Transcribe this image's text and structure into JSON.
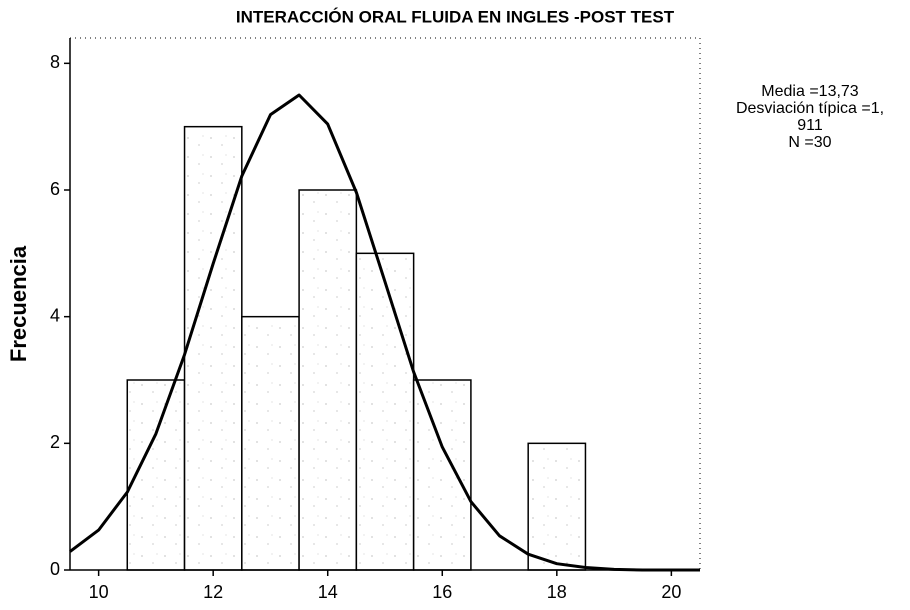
{
  "chart_data": {
    "type": "histogram",
    "title": "INTERACCIÓN ORAL FLUIDA EN INGLES -POST TEST",
    "y_label": "Frecuencia",
    "bins": [
      10.5,
      11.5,
      12.5,
      13.5,
      14.5,
      15.5,
      16.5,
      17.5,
      18.5
    ],
    "values": [
      3,
      7,
      4,
      6,
      5,
      3,
      0,
      2
    ],
    "color": "#ffffff",
    "xlim": [
      9.5,
      20.5
    ],
    "xticks": [
      10,
      12,
      14,
      16,
      18,
      20
    ],
    "ylim": [
      0,
      8.4
    ],
    "yticks": [
      0,
      2,
      4,
      6,
      8
    ],
    "curve": {
      "x": [
        9.5,
        10,
        10.5,
        11,
        11.5,
        12,
        12.5,
        13,
        13.5,
        14,
        14.5,
        15,
        15.5,
        16,
        16.5,
        17,
        17.5,
        18,
        18.5,
        19,
        19.5,
        20,
        20.5
      ],
      "values": [
        0.29,
        0.63,
        1.23,
        2.15,
        3.4,
        4.84,
        6.22,
        7.19,
        7.5,
        7.04,
        5.96,
        4.55,
        3.13,
        1.94,
        1.08,
        0.54,
        0.25,
        0.1,
        0.04,
        0.01,
        0,
        0,
        0
      ],
      "color": "#000000"
    },
    "stats": [
      "Media =13,73",
      "Desviación típica =1,",
      "911",
      "N =30"
    ]
  }
}
